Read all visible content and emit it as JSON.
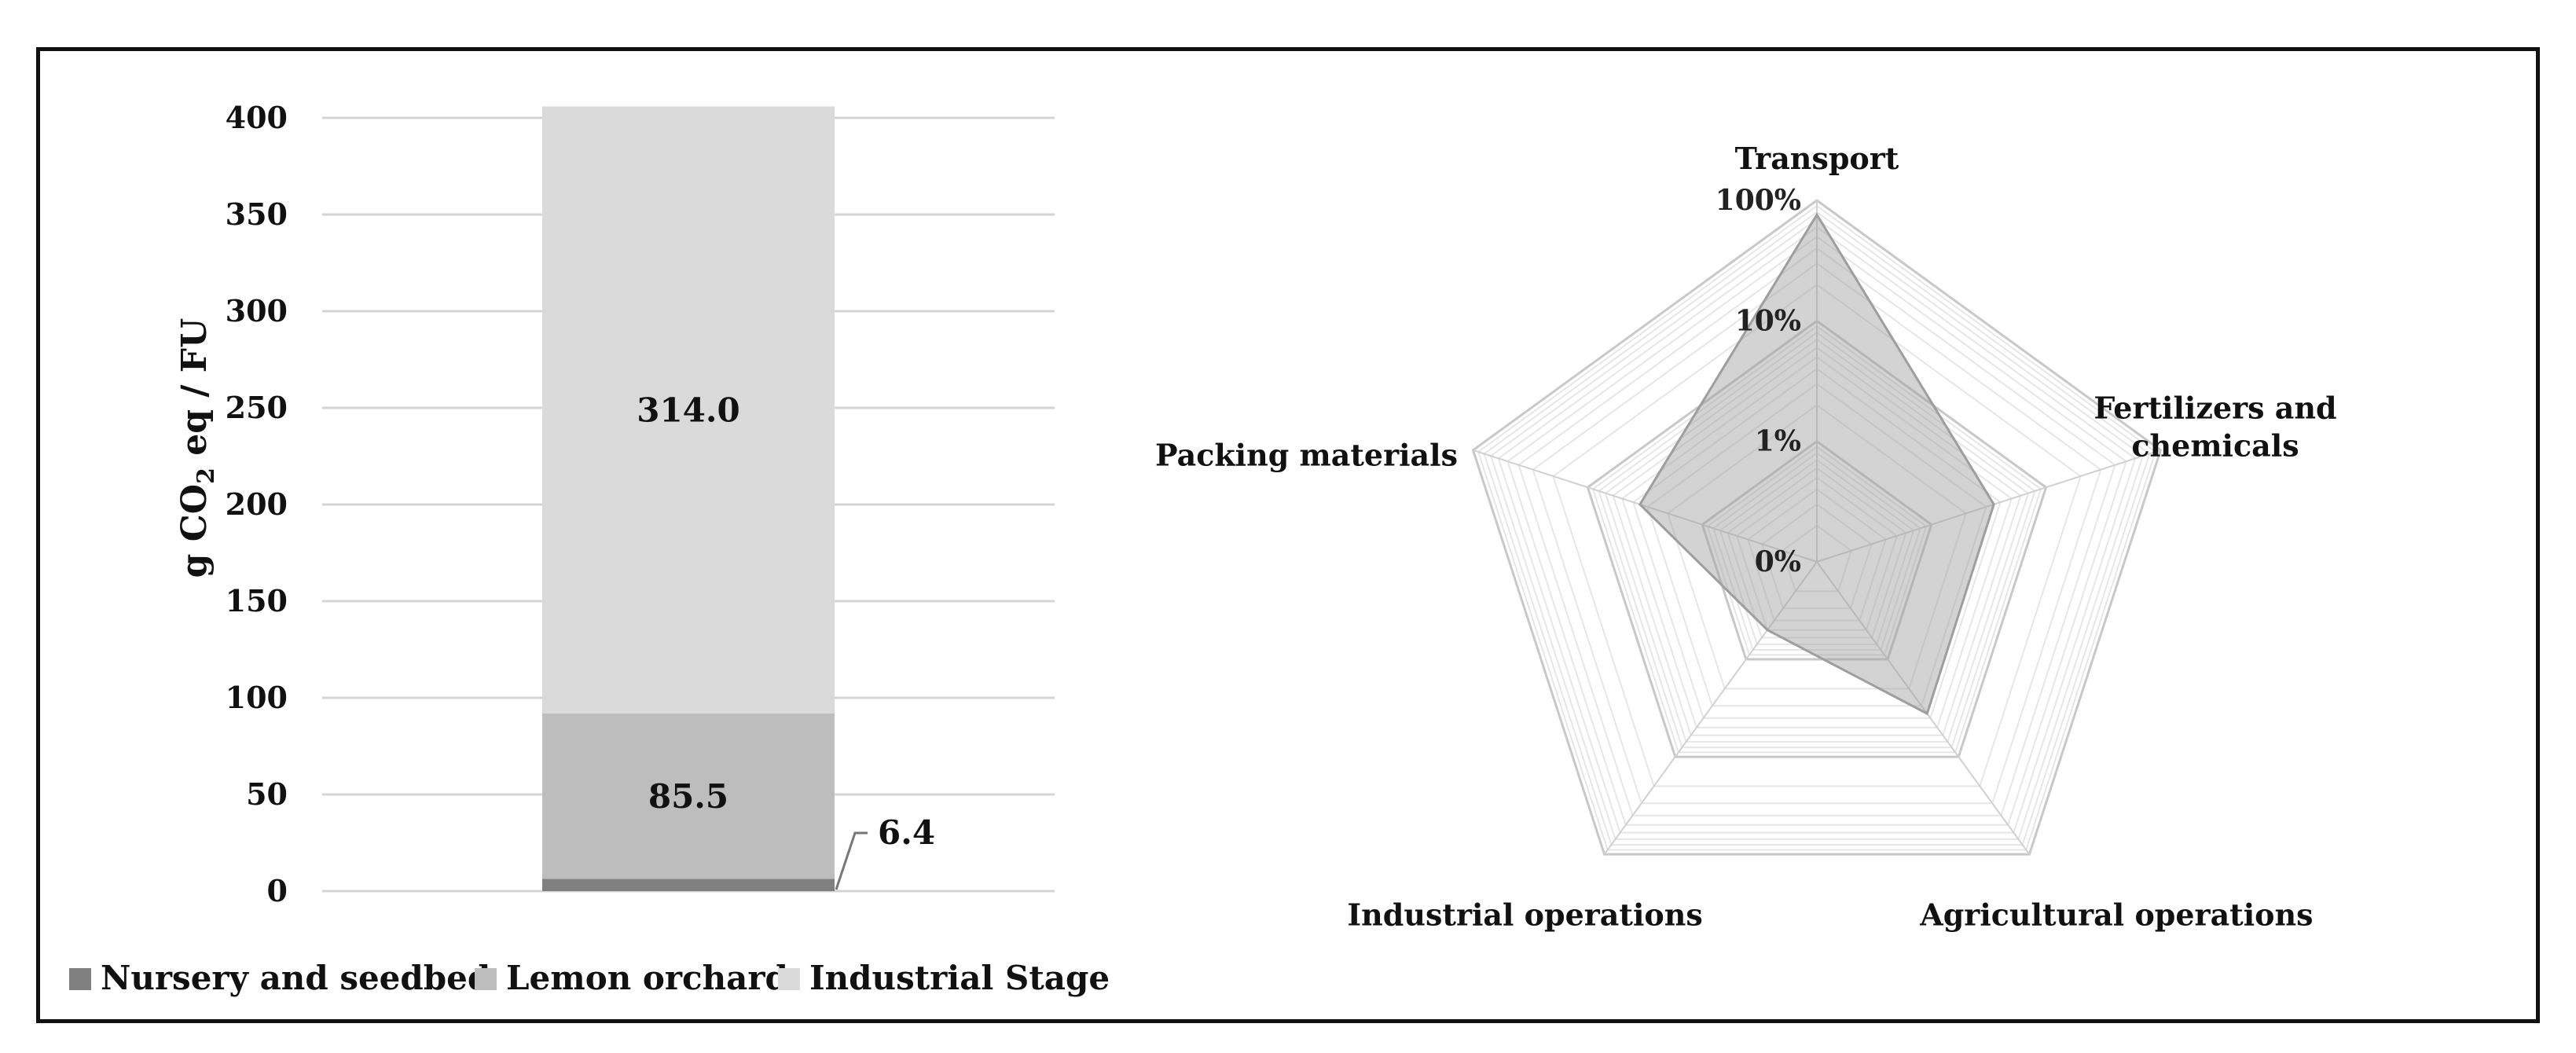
{
  "chart_data": [
    {
      "type": "bar",
      "subtype": "stacked",
      "categories": [
        ""
      ],
      "ylabel": "g CO2 eq / FU",
      "ylabel_parts": {
        "base": "g CO",
        "sub": "2",
        "rest": " eq / FU"
      },
      "ylim": [
        0,
        400
      ],
      "yticks": [
        0,
        50,
        100,
        150,
        200,
        250,
        300,
        350,
        400
      ],
      "grid": true,
      "legend_position": "bottom",
      "series": [
        {
          "name": "Nursery and seedbed",
          "values": [
            6.4
          ],
          "label": "6.4",
          "color": "#808080"
        },
        {
          "name": "Lemon orchard",
          "values": [
            85.5
          ],
          "label": "85.5",
          "color": "#bdbdbd"
        },
        {
          "name": "Industrial Stage",
          "values": [
            314.0
          ],
          "label": "314.0",
          "color": "#dadada"
        }
      ]
    },
    {
      "type": "radar",
      "scale": "log",
      "axes": [
        "Transport",
        "Fertilizers and chemicals",
        "Agricultural operations",
        "Industrial operations",
        "Packing materials"
      ],
      "axis_labels": [
        {
          "lines": [
            "Transport"
          ]
        },
        {
          "lines": [
            "Fertilizers and",
            "chemicals"
          ]
        },
        {
          "lines": [
            "Agricultural operations"
          ]
        },
        {
          "lines": [
            "Industrial operations"
          ]
        },
        {
          "lines": [
            "Packing materials"
          ]
        }
      ],
      "ticks": [
        "0%",
        "1%",
        "10%",
        "100%"
      ],
      "tick_values": [
        0.1,
        1,
        10,
        100
      ],
      "series": [
        {
          "values": [
            76,
            3.5,
            3.6,
            0.5,
            3.5
          ],
          "color": "#9e9e9e"
        }
      ]
    }
  ]
}
